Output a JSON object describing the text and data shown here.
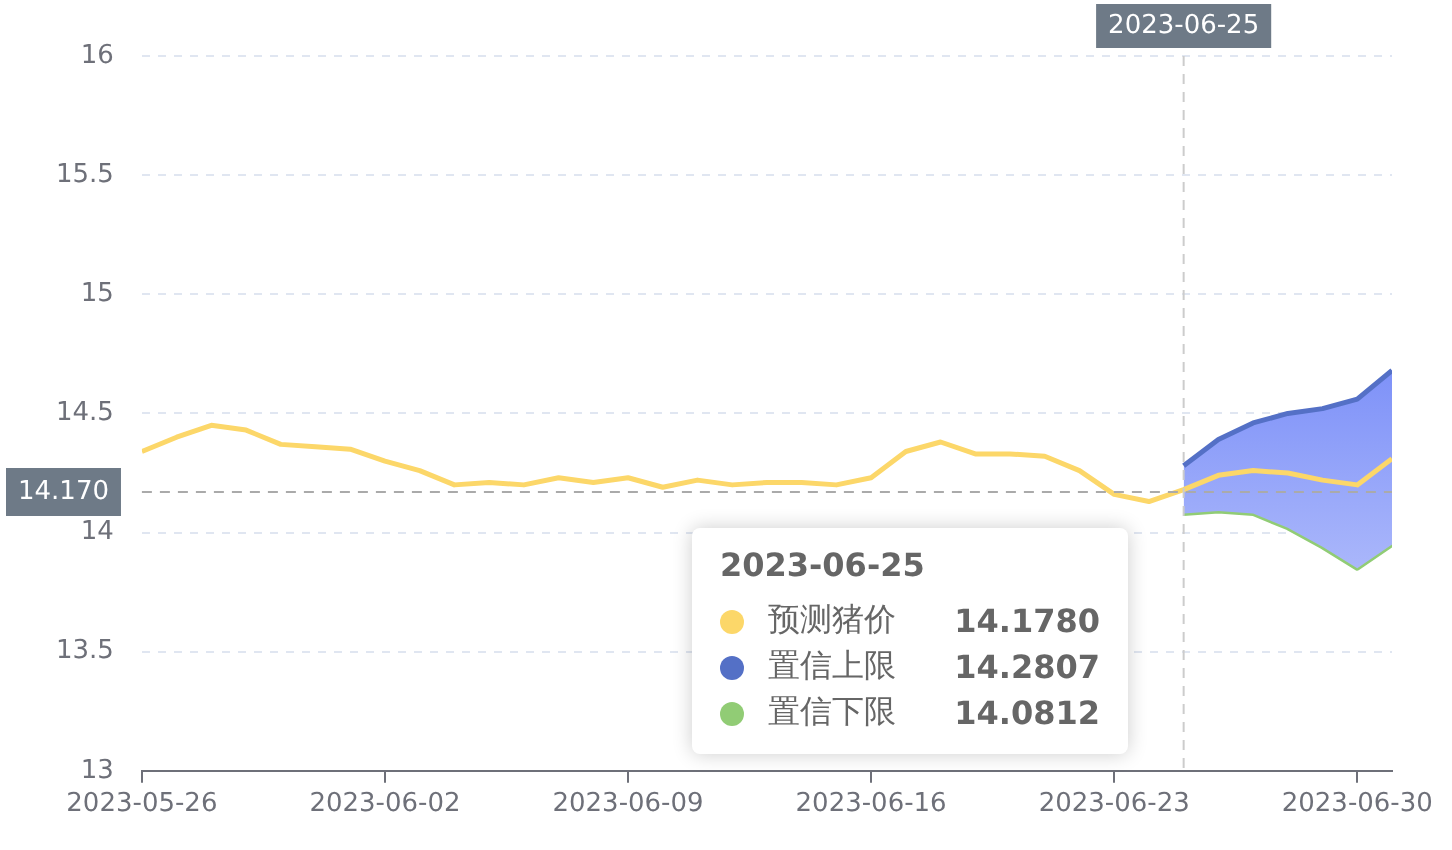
{
  "chart_data": {
    "type": "line",
    "x": [
      "2023-05-26",
      "2023-05-27",
      "2023-05-28",
      "2023-05-29",
      "2023-05-30",
      "2023-05-31",
      "2023-06-01",
      "2023-06-02",
      "2023-06-03",
      "2023-06-04",
      "2023-06-05",
      "2023-06-06",
      "2023-06-07",
      "2023-06-08",
      "2023-06-09",
      "2023-06-10",
      "2023-06-11",
      "2023-06-12",
      "2023-06-13",
      "2023-06-14",
      "2023-06-15",
      "2023-06-16",
      "2023-06-17",
      "2023-06-18",
      "2023-06-19",
      "2023-06-20",
      "2023-06-21",
      "2023-06-22",
      "2023-06-23",
      "2023-06-24",
      "2023-06-25",
      "2023-06-26",
      "2023-06-27",
      "2023-06-28",
      "2023-06-29",
      "2023-06-30",
      "2023-07-01"
    ],
    "series": [
      {
        "name": "预测猪价",
        "type": "line",
        "color": "#fcd769",
        "values": [
          14.34,
          14.4,
          14.45,
          14.43,
          14.37,
          14.36,
          14.35,
          14.3,
          14.26,
          14.2,
          14.21,
          14.2,
          14.23,
          14.21,
          14.23,
          14.19,
          14.22,
          14.2,
          14.21,
          14.21,
          14.2,
          14.23,
          14.34,
          14.38,
          14.33,
          14.33,
          14.32,
          14.26,
          14.16,
          14.13,
          14.18,
          14.24,
          14.26,
          14.25,
          14.22,
          14.2,
          14.31
        ]
      },
      {
        "name": "置信上限",
        "type": "area",
        "color": "#5470c6",
        "values": [
          null,
          null,
          null,
          null,
          null,
          null,
          null,
          null,
          null,
          null,
          null,
          null,
          null,
          null,
          null,
          null,
          null,
          null,
          null,
          null,
          null,
          null,
          null,
          null,
          null,
          null,
          null,
          null,
          null,
          null,
          14.28,
          14.39,
          14.46,
          14.5,
          14.52,
          14.56,
          14.68
        ]
      },
      {
        "name": "置信下限",
        "type": "line",
        "color": "#91cc75",
        "values": [
          null,
          null,
          null,
          null,
          null,
          null,
          null,
          null,
          null,
          null,
          null,
          null,
          null,
          null,
          null,
          null,
          null,
          null,
          null,
          null,
          null,
          null,
          null,
          null,
          null,
          null,
          null,
          null,
          null,
          null,
          14.08,
          14.09,
          14.08,
          14.02,
          13.94,
          13.85,
          13.95
        ]
      }
    ],
    "xlim": [
      "2023-05-26",
      "2023-07-01"
    ],
    "xticks": [
      "2023-05-26",
      "2023-06-02",
      "2023-06-09",
      "2023-06-16",
      "2023-06-23",
      "2023-06-30"
    ],
    "ylim": [
      13,
      16
    ],
    "yticks": [
      13,
      13.5,
      14,
      14.5,
      15,
      15.5,
      16
    ],
    "grid": "y",
    "marker": "none",
    "line_style": "solid",
    "legend": "bottom",
    "annotations": [
      "2023-06-25",
      "14.1780",
      "14.2807",
      "14.0812"
    ],
    "ref_lines": [
      {
        "axis": "y",
        "value": 14.17,
        "label": "14.170",
        "color": "#aaaaaa",
        "line_style": "dashed"
      },
      {
        "axis": "x",
        "value": "2023-06-25",
        "label": "2023-06-25",
        "color": "#cccccc",
        "line_style": "dashed"
      }
    ]
  }
}
